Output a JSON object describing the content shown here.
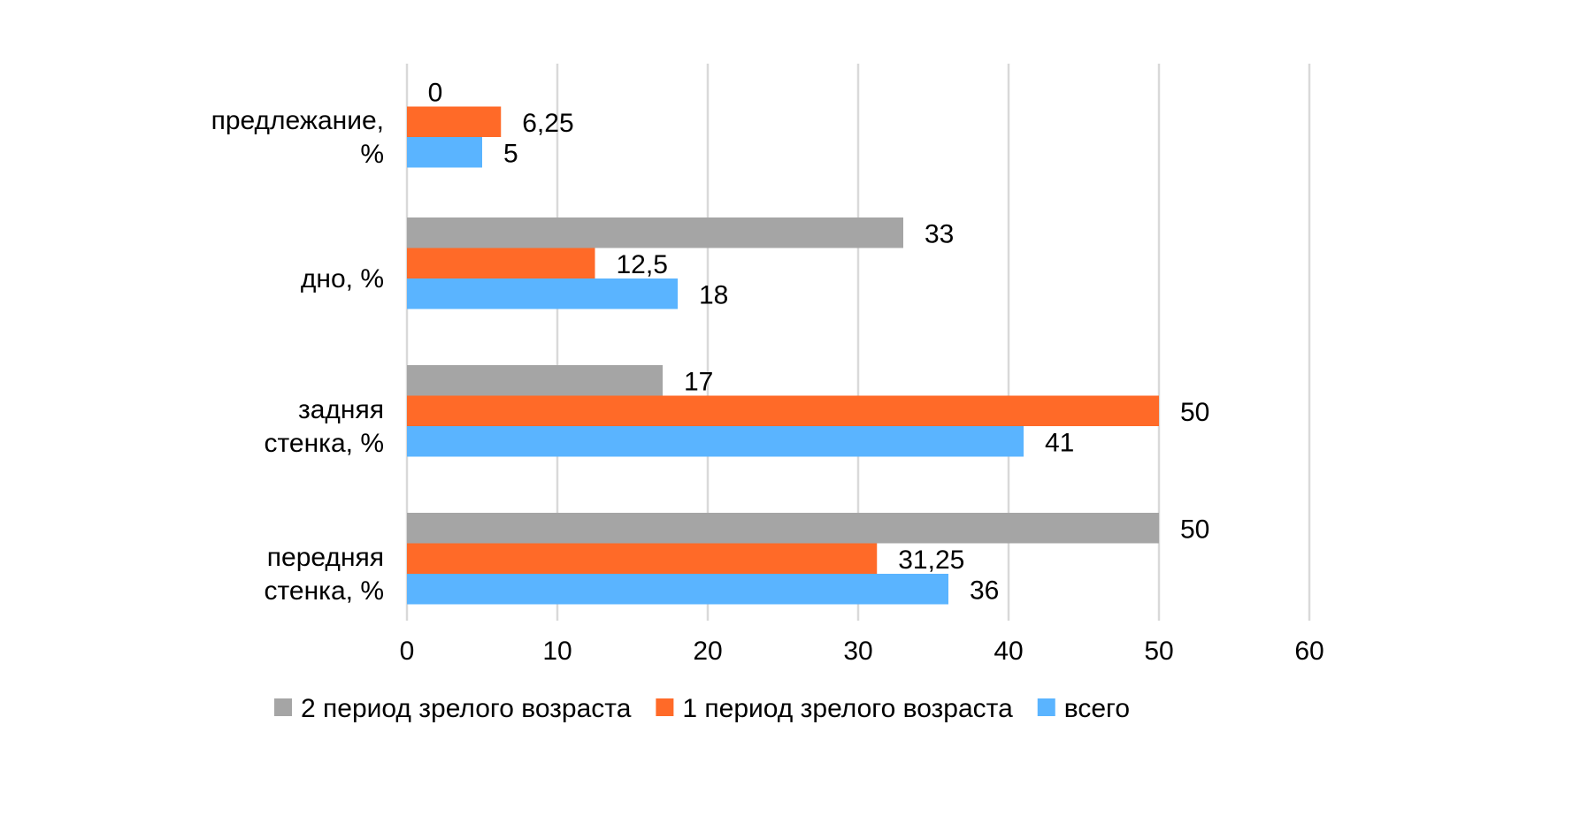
{
  "chart_data": {
    "type": "bar",
    "orientation": "horizontal",
    "title": "",
    "xlabel": "",
    "ylabel": "",
    "xlim": [
      0,
      60
    ],
    "xticks": [
      0,
      10,
      20,
      30,
      40,
      50,
      60
    ],
    "grid": true,
    "legend_position": "bottom",
    "categories": [
      [
        "предлежание,",
        "%"
      ],
      [
        "дно, %"
      ],
      [
        "задняя",
        "стенка, %"
      ],
      [
        "передняя",
        "стенка,  %"
      ]
    ],
    "series": [
      {
        "name": "2 период зрелого возраста",
        "color": "#a5a5a5",
        "values": [
          0,
          33,
          17,
          50
        ],
        "labels": [
          "0",
          "33",
          "17",
          "50"
        ]
      },
      {
        "name": "1 период зрелого возраста",
        "color": "#ff6a28",
        "values": [
          6.25,
          12.5,
          50,
          31.25
        ],
        "labels": [
          "6,25",
          "12,5",
          "50",
          "31,25"
        ]
      },
      {
        "name": "всего",
        "color": "#5ab4ff",
        "values": [
          5,
          18,
          41,
          36
        ],
        "labels": [
          "5",
          "18",
          "41",
          "36"
        ]
      }
    ]
  }
}
